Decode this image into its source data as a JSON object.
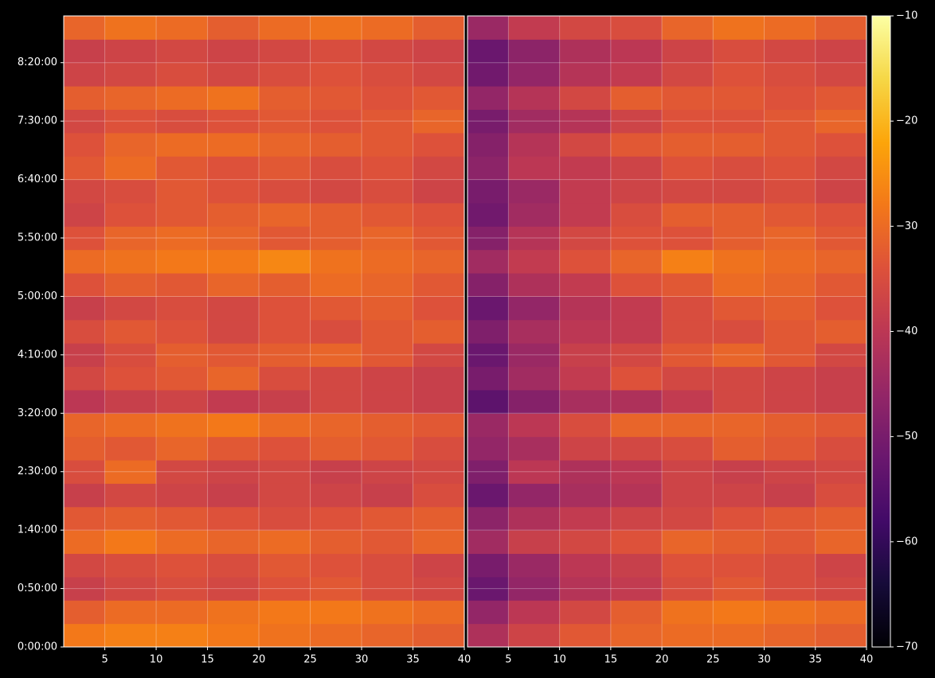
{
  "chart_data": {
    "type": "heatmap",
    "ylim": [
      0,
      32400
    ],
    "yticks": [
      {
        "value": 0,
        "label": "0:00:00"
      },
      {
        "value": 3000,
        "label": "0:50:00"
      },
      {
        "value": 6000,
        "label": "1:40:00"
      },
      {
        "value": 9000,
        "label": "2:30:00"
      },
      {
        "value": 12000,
        "label": "3:20:00"
      },
      {
        "value": 15000,
        "label": "4:10:00"
      },
      {
        "value": 18000,
        "label": "5:00:00"
      },
      {
        "value": 21000,
        "label": "5:50:00"
      },
      {
        "value": 24000,
        "label": "6:40:00"
      },
      {
        "value": 27000,
        "label": "7:30:00"
      },
      {
        "value": 30000,
        "label": "8:20:00"
      }
    ],
    "xlim": [
      1,
      40
    ],
    "xticks": [
      5,
      10,
      15,
      20,
      25,
      30,
      35,
      40
    ],
    "grid": true,
    "x_edges": [
      1,
      5,
      10,
      15,
      20,
      25,
      30,
      35,
      40
    ],
    "y_edges": [
      0,
      1200,
      2400,
      3600,
      4800,
      6000,
      7200,
      8400,
      9600,
      10800,
      12000,
      13200,
      14400,
      15600,
      16800,
      18000,
      19200,
      20400,
      21600,
      22800,
      24000,
      25200,
      26400,
      27600,
      28800,
      30000,
      31200,
      32400
    ],
    "colorbar": {
      "colormap": "inferno",
      "lim": [
        -70,
        -10
      ],
      "ticks": [
        {
          "value": -70,
          "label": "−70"
        },
        {
          "value": -60,
          "label": "−60"
        },
        {
          "value": -50,
          "label": "−50"
        },
        {
          "value": -40,
          "label": "−40"
        },
        {
          "value": -30,
          "label": "−30"
        },
        {
          "value": -20,
          "label": "−20"
        },
        {
          "value": -10,
          "label": "−10"
        }
      ]
    },
    "panels": [
      {
        "z": [
          [
            -28,
            -27,
            -27,
            -28,
            -29,
            -30,
            -31,
            -32
          ],
          [
            -32,
            -30,
            -30,
            -29,
            -28,
            -28,
            -29,
            -30
          ],
          [
            -38,
            -36,
            -35,
            -36,
            -34,
            -33,
            -35,
            -36
          ],
          [
            -36,
            -35,
            -34,
            -35,
            -33,
            -34,
            -35,
            -37
          ],
          [
            -30,
            -28,
            -30,
            -31,
            -30,
            -32,
            -33,
            -31
          ],
          [
            -33,
            -32,
            -33,
            -34,
            -35,
            -34,
            -33,
            -32
          ],
          [
            -38,
            -36,
            -37,
            -38,
            -36,
            -37,
            -38,
            -35
          ],
          [
            -35,
            -30,
            -36,
            -37,
            -36,
            -38,
            -37,
            -36
          ],
          [
            -32,
            -33,
            -31,
            -33,
            -34,
            -32,
            -33,
            -35
          ],
          [
            -31,
            -30,
            -29,
            -28,
            -30,
            -31,
            -32,
            -33
          ],
          [
            -40,
            -38,
            -37,
            -39,
            -38,
            -36,
            -37,
            -38
          ],
          [
            -36,
            -34,
            -33,
            -31,
            -35,
            -36,
            -37,
            -38
          ],
          [
            -38,
            -35,
            -32,
            -33,
            -32,
            -31,
            -33,
            -36
          ],
          [
            -35,
            -33,
            -34,
            -36,
            -34,
            -35,
            -33,
            -32
          ],
          [
            -38,
            -36,
            -35,
            -36,
            -34,
            -33,
            -32,
            -34
          ],
          [
            -34,
            -32,
            -33,
            -31,
            -32,
            -30,
            -31,
            -33
          ],
          [
            -30,
            -29,
            -28,
            -28,
            -26,
            -29,
            -30,
            -31
          ],
          [
            -34,
            -31,
            -30,
            -31,
            -33,
            -32,
            -31,
            -33
          ],
          [
            -37,
            -34,
            -33,
            -32,
            -31,
            -32,
            -33,
            -34
          ],
          [
            -36,
            -35,
            -33,
            -34,
            -35,
            -36,
            -35,
            -37
          ],
          [
            -33,
            -30,
            -33,
            -34,
            -33,
            -35,
            -34,
            -36
          ],
          [
            -34,
            -31,
            -30,
            -30,
            -31,
            -32,
            -33,
            -34
          ],
          [
            -36,
            -34,
            -35,
            -34,
            -33,
            -34,
            -33,
            -31
          ],
          [
            -32,
            -31,
            -30,
            -29,
            -32,
            -33,
            -34,
            -33
          ],
          [
            -37,
            -36,
            -35,
            -36,
            -35,
            -34,
            -35,
            -36
          ],
          [
            -38,
            -37,
            -36,
            -37,
            -36,
            -35,
            -36,
            -37
          ],
          [
            -31,
            -29,
            -30,
            -32,
            -30,
            -29,
            -30,
            -32
          ]
        ]
      },
      {
        "z": [
          [
            -42,
            -37,
            -33,
            -31,
            -30,
            -30,
            -31,
            -32
          ],
          [
            -46,
            -40,
            -36,
            -32,
            -29,
            -28,
            -29,
            -30
          ],
          [
            -52,
            -46,
            -41,
            -39,
            -35,
            -33,
            -35,
            -36
          ],
          [
            -50,
            -45,
            -40,
            -38,
            -34,
            -34,
            -35,
            -37
          ],
          [
            -44,
            -38,
            -36,
            -34,
            -31,
            -32,
            -33,
            -31
          ],
          [
            -47,
            -42,
            -39,
            -37,
            -36,
            -34,
            -33,
            -32
          ],
          [
            -52,
            -46,
            -43,
            -41,
            -37,
            -37,
            -38,
            -35
          ],
          [
            -49,
            -40,
            -42,
            -40,
            -37,
            -38,
            -37,
            -36
          ],
          [
            -46,
            -43,
            -37,
            -36,
            -35,
            -32,
            -33,
            -35
          ],
          [
            -45,
            -40,
            -35,
            -31,
            -31,
            -31,
            -32,
            -33
          ],
          [
            -54,
            -48,
            -43,
            -42,
            -39,
            -36,
            -37,
            -38
          ],
          [
            -50,
            -44,
            -39,
            -34,
            -36,
            -36,
            -37,
            -38
          ],
          [
            -52,
            -45,
            -38,
            -36,
            -33,
            -31,
            -33,
            -36
          ],
          [
            -49,
            -43,
            -40,
            -39,
            -35,
            -35,
            -33,
            -32
          ],
          [
            -52,
            -46,
            -41,
            -39,
            -35,
            -33,
            -32,
            -34
          ],
          [
            -48,
            -42,
            -39,
            -34,
            -33,
            -30,
            -31,
            -33
          ],
          [
            -44,
            -39,
            -34,
            -31,
            -27,
            -29,
            -30,
            -31
          ],
          [
            -48,
            -41,
            -36,
            -34,
            -34,
            -32,
            -31,
            -33
          ],
          [
            -51,
            -44,
            -39,
            -35,
            -32,
            -32,
            -33,
            -34
          ],
          [
            -50,
            -45,
            -39,
            -37,
            -36,
            -36,
            -35,
            -37
          ],
          [
            -47,
            -40,
            -39,
            -37,
            -34,
            -35,
            -34,
            -36
          ],
          [
            -48,
            -41,
            -36,
            -33,
            -32,
            -32,
            -33,
            -34
          ],
          [
            -50,
            -44,
            -41,
            -37,
            -34,
            -34,
            -33,
            -31
          ],
          [
            -46,
            -41,
            -36,
            -32,
            -33,
            -33,
            -34,
            -33
          ],
          [
            -51,
            -46,
            -41,
            -39,
            -36,
            -34,
            -35,
            -36
          ],
          [
            -52,
            -47,
            -42,
            -40,
            -37,
            -35,
            -36,
            -37
          ],
          [
            -45,
            -39,
            -36,
            -35,
            -31,
            -29,
            -30,
            -32
          ]
        ]
      }
    ]
  }
}
